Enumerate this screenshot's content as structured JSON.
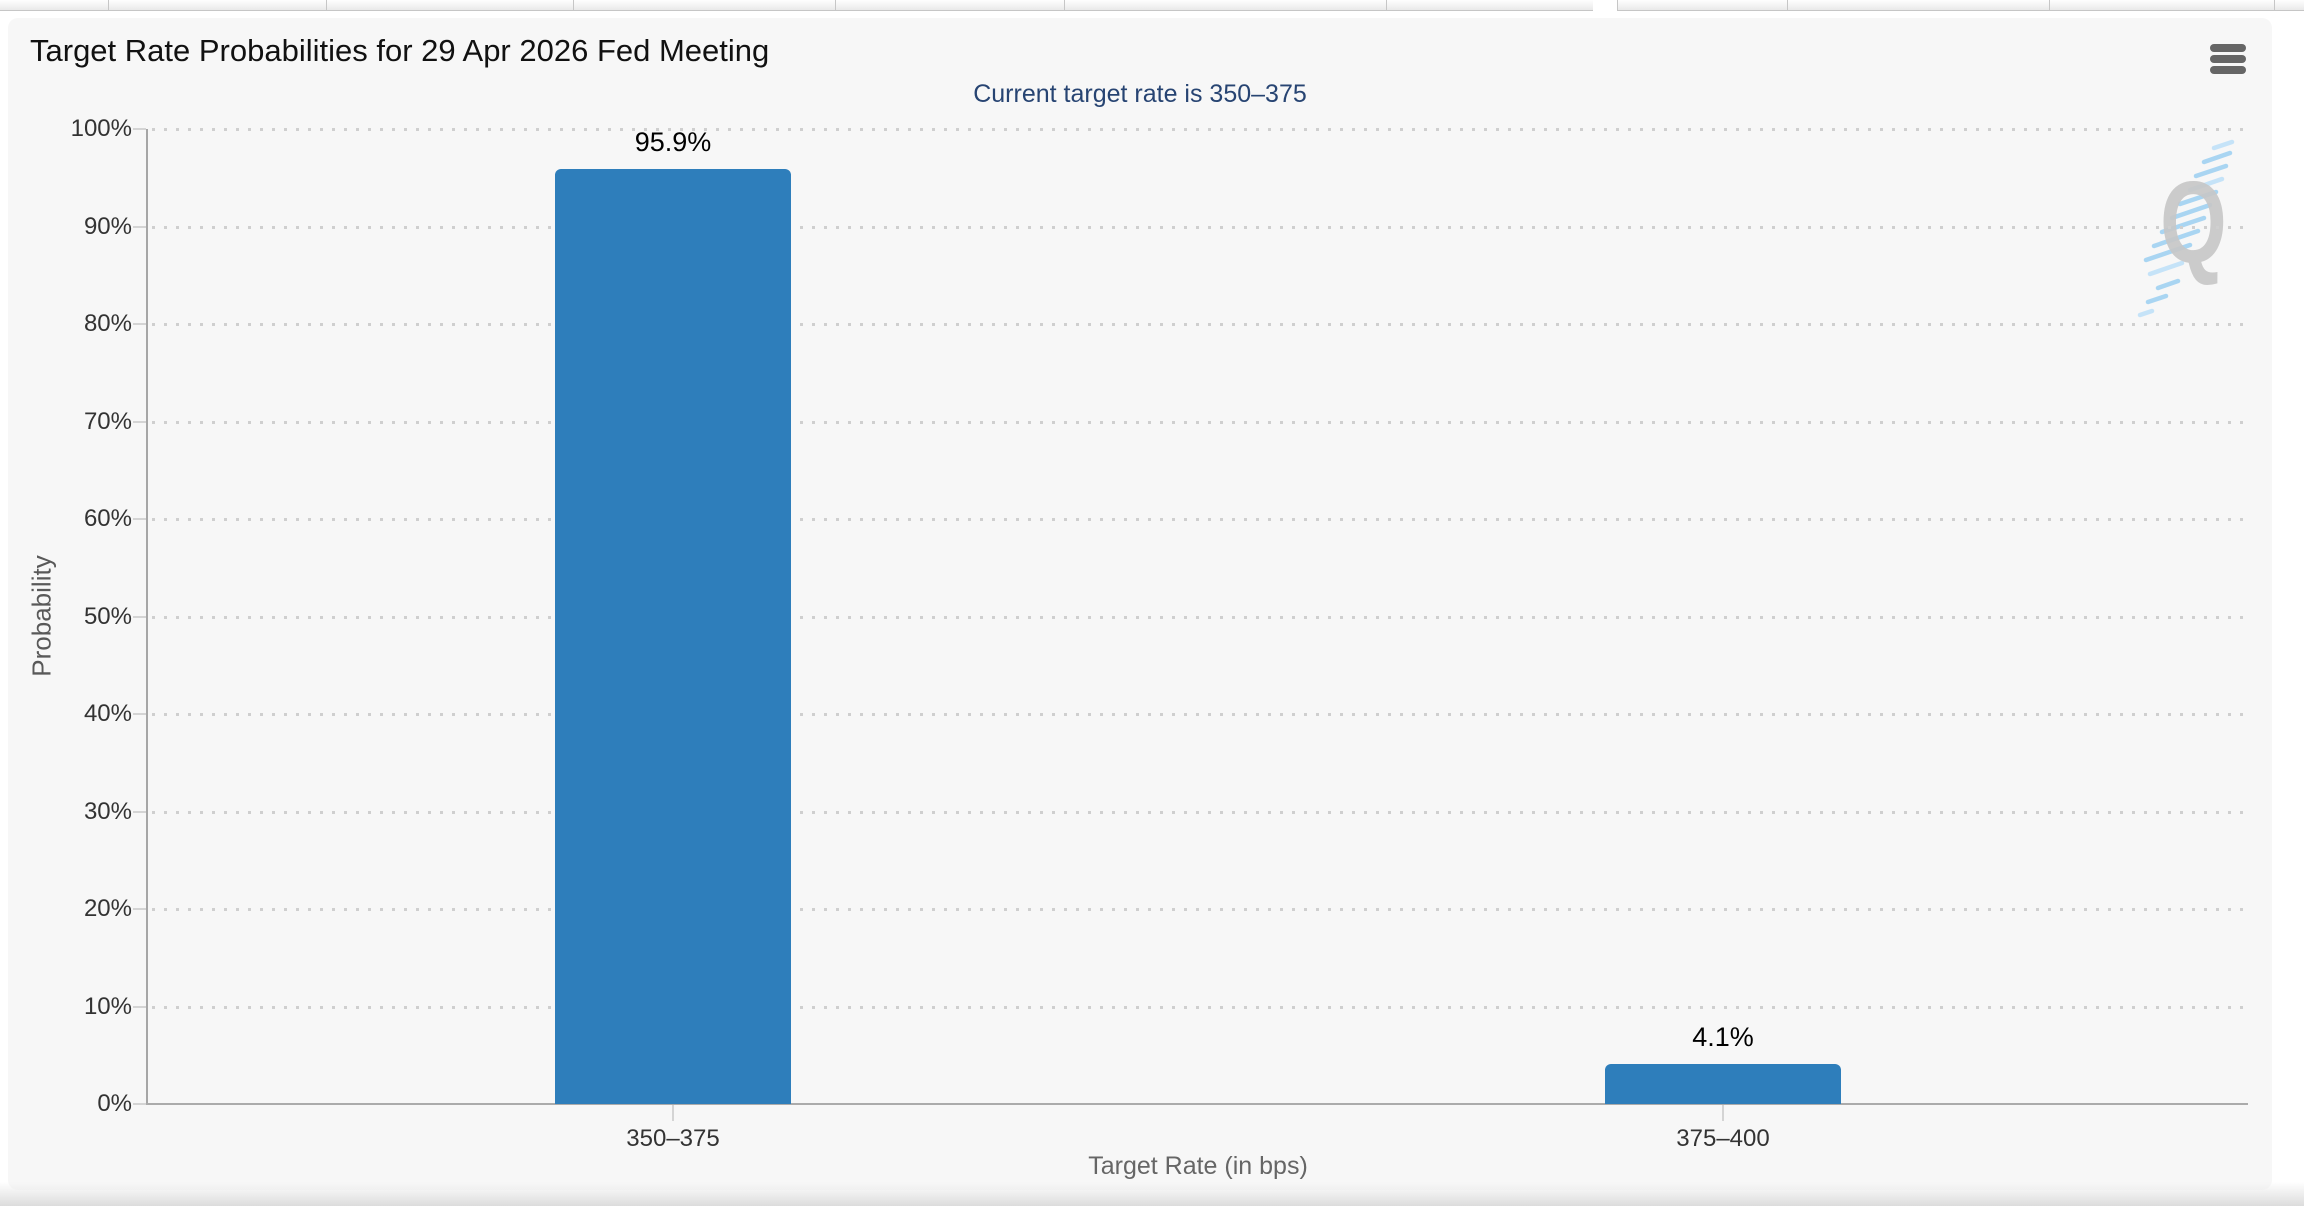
{
  "watermark": {
    "letter": "Q"
  },
  "chart_data": {
    "type": "bar",
    "title": "Target Rate Probabilities for 29 Apr 2026 Fed Meeting",
    "subtitle": "Current target rate is 350–375",
    "categories": [
      "350–375",
      "375–400"
    ],
    "values": [
      95.9,
      4.1
    ],
    "data_labels": [
      "95.9%",
      "4.1%"
    ],
    "series_name": "Probability",
    "xlabel": "Target Rate (in bps)",
    "ylabel": "Probability",
    "ylim": [
      0,
      100
    ],
    "ytick_step": 10,
    "ytick_suffix": "%",
    "ytick_labels": [
      "0%",
      "10%",
      "20%",
      "30%",
      "40%",
      "50%",
      "60%",
      "70%",
      "80%",
      "90%",
      "100%"
    ],
    "grid": "dotted-horizontal",
    "legend": "none",
    "bar_color": "#2E7EBB",
    "subtitle_color": "#274472",
    "background_color": "#f7f7f7"
  }
}
